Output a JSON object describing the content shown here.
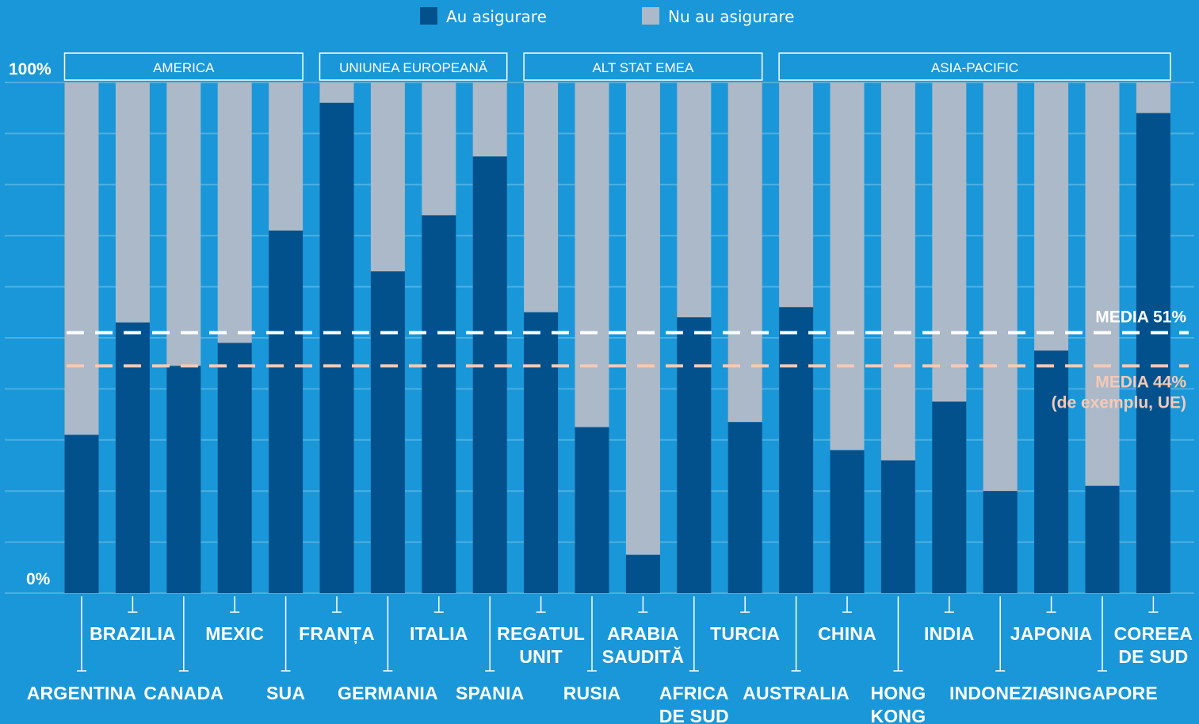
{
  "legend": {
    "insured_label": "Au asigurare",
    "uninsured_label": "Nu au asigurare"
  },
  "colors": {
    "background": "#1a97d8",
    "insured": "#02518c",
    "uninsured": "#abb9c9",
    "gridline": "#4cafe2",
    "average_eu": "#f5c9b6",
    "average_global": "#ffffff"
  },
  "chart_data": {
    "type": "bar",
    "stacked": true,
    "ylim": [
      0,
      100
    ],
    "y_ticks": [
      "100%",
      "0%"
    ],
    "grid": true,
    "categories": [
      [
        "ARGENTINA"
      ],
      [
        "BRAZILIA"
      ],
      [
        "CANADA"
      ],
      [
        "MEXIC"
      ],
      [
        "SUA"
      ],
      [
        "FRANȚA"
      ],
      [
        "GERMANIA"
      ],
      [
        "ITALIA"
      ],
      [
        "SPANIA"
      ],
      [
        "REGATUL",
        "UNIT"
      ],
      [
        "RUSIA"
      ],
      [
        "ARABIA",
        "SAUDITĂ"
      ],
      [
        "AFRICA",
        "DE SUD"
      ],
      [
        "TURCIA"
      ],
      [
        "AUSTRALIA"
      ],
      [
        "CHINA"
      ],
      [
        "HONG",
        "KONG"
      ],
      [
        "INDIA"
      ],
      [
        "INDONEZIA"
      ],
      [
        "JAPONIA"
      ],
      [
        "SINGAPORE"
      ],
      [
        "COREEA",
        "DE SUD"
      ]
    ],
    "series": [
      {
        "name": "Au asigurare",
        "values": [
          31,
          53,
          44.5,
          49,
          71,
          96,
          63,
          74,
          85.5,
          55,
          32.5,
          7.5,
          54,
          33.5,
          56,
          28,
          26,
          37.5,
          20,
          47.5,
          21,
          94
        ]
      },
      {
        "name": "Nu au asigurare",
        "values": [
          69,
          47,
          55.5,
          51,
          29,
          4,
          37,
          26,
          14.5,
          45,
          67.5,
          92.5,
          46,
          66.5,
          44,
          72,
          74,
          62.5,
          80,
          52.5,
          79,
          6
        ]
      }
    ],
    "groups": [
      {
        "label": "AMERICA",
        "first": 0,
        "last": 4
      },
      {
        "label": "UNIUNEA EUROPEANĂ",
        "first": 5,
        "last": 8
      },
      {
        "label": "ALT STAT EMEA",
        "first": 9,
        "last": 13
      },
      {
        "label": "ASIA-PACIFIC",
        "first": 14,
        "last": 21
      }
    ],
    "average_lines": [
      {
        "value": 51,
        "lines": [
          "MEDIA 51%"
        ],
        "color": "#ffffff"
      },
      {
        "value": 44.5,
        "lines": [
          "MEDIA 44%",
          "(de exemplu, UE)"
        ],
        "color": "#f5c9b6"
      }
    ]
  }
}
